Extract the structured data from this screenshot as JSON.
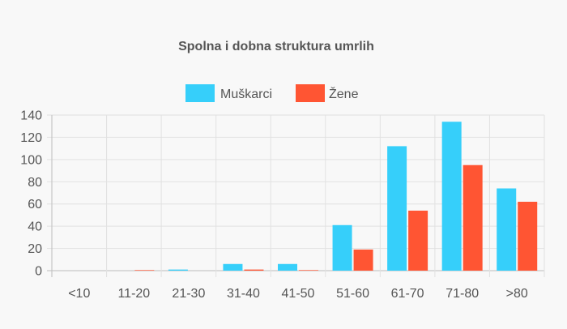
{
  "chart_data": {
    "type": "bar",
    "title": "Spolna i dobna struktura umrlih",
    "xlabel": "",
    "ylabel": "",
    "categories": [
      "<10",
      "11-20",
      "21-30",
      "31-40",
      "41-50",
      "51-60",
      "61-70",
      "71-80",
      ">80"
    ],
    "series": [
      {
        "name": "Muškarci",
        "color": "#36cffa",
        "values": [
          0,
          0,
          1,
          6,
          6,
          41,
          112,
          134,
          74
        ]
      },
      {
        "name": "Žene",
        "color": "#ff5533",
        "values": [
          0,
          0.5,
          0,
          1,
          0.5,
          19,
          54,
          95,
          62
        ]
      }
    ],
    "ylim": [
      0,
      140
    ],
    "yticks": [
      0,
      20,
      40,
      60,
      80,
      100,
      120,
      140
    ],
    "grid": true,
    "legend_position": "top-center"
  }
}
